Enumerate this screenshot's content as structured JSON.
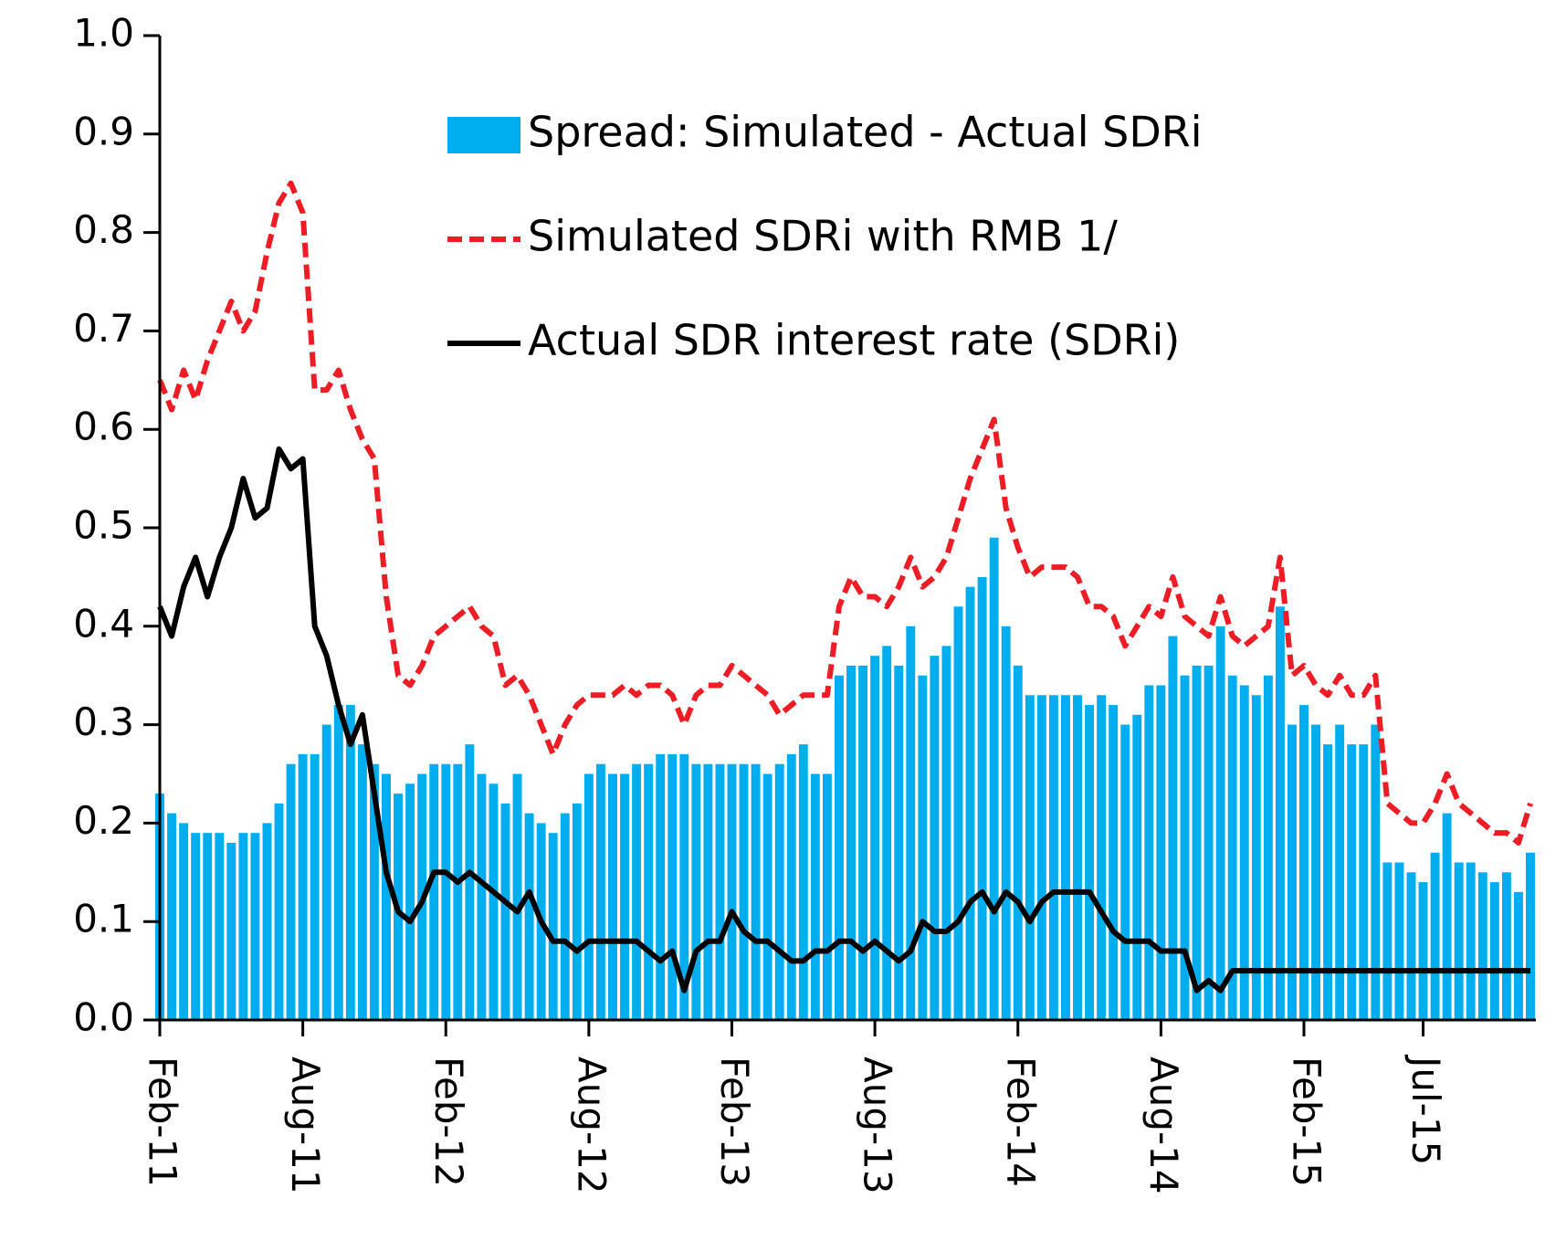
{
  "chart_data": {
    "type": "bar-line",
    "categories": [
      "Feb-11",
      null,
      null,
      null,
      null,
      null,
      null,
      null,
      null,
      null,
      null,
      null,
      "Aug-11",
      null,
      null,
      null,
      null,
      null,
      null,
      null,
      null,
      null,
      null,
      null,
      "Feb-12",
      null,
      null,
      null,
      null,
      null,
      null,
      null,
      null,
      null,
      null,
      null,
      "Aug-12",
      null,
      null,
      null,
      null,
      null,
      null,
      null,
      null,
      null,
      null,
      null,
      "Feb-13",
      null,
      null,
      null,
      null,
      null,
      null,
      null,
      null,
      null,
      null,
      null,
      "Aug-13",
      null,
      null,
      null,
      null,
      null,
      null,
      null,
      null,
      null,
      null,
      null,
      "Feb-14",
      null,
      null,
      null,
      null,
      null,
      null,
      null,
      null,
      null,
      null,
      null,
      "Aug-14",
      null,
      null,
      null,
      null,
      null,
      null,
      null,
      null,
      null,
      null,
      null,
      "Feb-15",
      null,
      null,
      null,
      null,
      null,
      null,
      null,
      null,
      null,
      "Jul-15",
      null,
      null,
      null,
      null,
      null,
      null,
      null,
      null,
      null
    ],
    "series": [
      {
        "name": "Spread: Simulated - Actual SDRi",
        "kind": "bar",
        "color": "#00aeef",
        "values": [
          0.23,
          0.21,
          0.2,
          0.19,
          0.19,
          0.19,
          0.18,
          0.19,
          0.19,
          0.2,
          0.22,
          0.26,
          0.27,
          0.27,
          0.3,
          0.32,
          0.32,
          0.28,
          0.26,
          0.25,
          0.23,
          0.24,
          0.25,
          0.26,
          0.26,
          0.26,
          0.28,
          0.25,
          0.24,
          0.22,
          0.25,
          0.21,
          0.2,
          0.19,
          0.21,
          0.22,
          0.25,
          0.26,
          0.25,
          0.25,
          0.26,
          0.26,
          0.27,
          0.27,
          0.27,
          0.26,
          0.26,
          0.26,
          0.26,
          0.26,
          0.26,
          0.25,
          0.26,
          0.27,
          0.28,
          0.25,
          0.25,
          0.35,
          0.36,
          0.36,
          0.37,
          0.38,
          0.36,
          0.4,
          0.35,
          0.37,
          0.38,
          0.42,
          0.44,
          0.45,
          0.49,
          0.4,
          0.36,
          0.33,
          0.33,
          0.33,
          0.33,
          0.33,
          0.32,
          0.33,
          0.32,
          0.3,
          0.31,
          0.34,
          0.34,
          0.39,
          0.35,
          0.36,
          0.36,
          0.4,
          0.35,
          0.34,
          0.33,
          0.35,
          0.42,
          0.3,
          0.32,
          0.3,
          0.28,
          0.3,
          0.28,
          0.28,
          0.3,
          0.16,
          0.16,
          0.15,
          0.14,
          0.17,
          0.21,
          0.16,
          0.16,
          0.15,
          0.14,
          0.15,
          0.13,
          0.17
        ]
      },
      {
        "name": "Simulated SDRi with RMB 1/",
        "kind": "dashed-line",
        "color": "#ee1c25",
        "values": [
          0.65,
          0.62,
          0.66,
          0.63,
          0.67,
          0.7,
          0.73,
          0.7,
          0.72,
          0.78,
          0.83,
          0.85,
          0.82,
          0.64,
          0.64,
          0.66,
          0.62,
          0.59,
          0.57,
          0.43,
          0.35,
          0.34,
          0.36,
          0.39,
          0.4,
          0.41,
          0.42,
          0.4,
          0.39,
          0.34,
          0.35,
          0.33,
          0.3,
          0.27,
          0.3,
          0.32,
          0.33,
          0.33,
          0.33,
          0.34,
          0.33,
          0.34,
          0.34,
          0.33,
          0.3,
          0.33,
          0.34,
          0.34,
          0.36,
          0.35,
          0.34,
          0.33,
          0.31,
          0.32,
          0.33,
          0.33,
          0.33,
          0.42,
          0.45,
          0.43,
          0.43,
          0.42,
          0.44,
          0.47,
          0.44,
          0.45,
          0.47,
          0.51,
          0.55,
          0.58,
          0.61,
          0.52,
          0.48,
          0.45,
          0.46,
          0.46,
          0.46,
          0.45,
          0.42,
          0.42,
          0.41,
          0.38,
          0.4,
          0.42,
          0.41,
          0.45,
          0.41,
          0.4,
          0.39,
          0.43,
          0.39,
          0.38,
          0.39,
          0.4,
          0.47,
          0.35,
          0.36,
          0.34,
          0.33,
          0.35,
          0.33,
          0.33,
          0.35,
          0.22,
          0.21,
          0.2,
          0.2,
          0.22,
          0.25,
          0.22,
          0.21,
          0.2,
          0.19,
          0.19,
          0.18,
          0.22
        ]
      },
      {
        "name": "Actual SDR interest rate (SDRi)",
        "kind": "line",
        "color": "#000000",
        "values": [
          0.42,
          0.39,
          0.44,
          0.47,
          0.43,
          0.47,
          0.5,
          0.55,
          0.51,
          0.52,
          0.58,
          0.56,
          0.57,
          0.4,
          0.37,
          0.32,
          0.28,
          0.31,
          0.23,
          0.15,
          0.11,
          0.1,
          0.12,
          0.15,
          0.15,
          0.14,
          0.15,
          0.14,
          0.13,
          0.12,
          0.11,
          0.13,
          0.1,
          0.08,
          0.08,
          0.07,
          0.08,
          0.08,
          0.08,
          0.08,
          0.08,
          0.07,
          0.06,
          0.07,
          0.03,
          0.07,
          0.08,
          0.08,
          0.11,
          0.09,
          0.08,
          0.08,
          0.07,
          0.06,
          0.06,
          0.07,
          0.07,
          0.08,
          0.08,
          0.07,
          0.08,
          0.07,
          0.06,
          0.07,
          0.1,
          0.09,
          0.09,
          0.1,
          0.12,
          0.13,
          0.11,
          0.13,
          0.12,
          0.1,
          0.12,
          0.13,
          0.13,
          0.13,
          0.13,
          0.11,
          0.09,
          0.08,
          0.08,
          0.08,
          0.07,
          0.07,
          0.07,
          0.03,
          0.04,
          0.03,
          0.05,
          0.05,
          0.05,
          0.05,
          0.05,
          0.05,
          0.05,
          0.05,
          0.05,
          0.05,
          0.05,
          0.05,
          0.05,
          0.05,
          0.05,
          0.05,
          0.05,
          0.05,
          0.05,
          0.05,
          0.05,
          0.05,
          0.05,
          0.05,
          0.05,
          0.05
        ]
      }
    ],
    "ylim": [
      0,
      1
    ],
    "yticks": [
      {
        "value": 0,
        "label": "0.0"
      },
      0.1,
      0.2,
      0.3,
      0.4,
      0.5,
      0.6,
      0.7,
      0.8,
      0.9,
      {
        "value": 1,
        "label": "1.0"
      }
    ],
    "legend": "upper-center"
  }
}
